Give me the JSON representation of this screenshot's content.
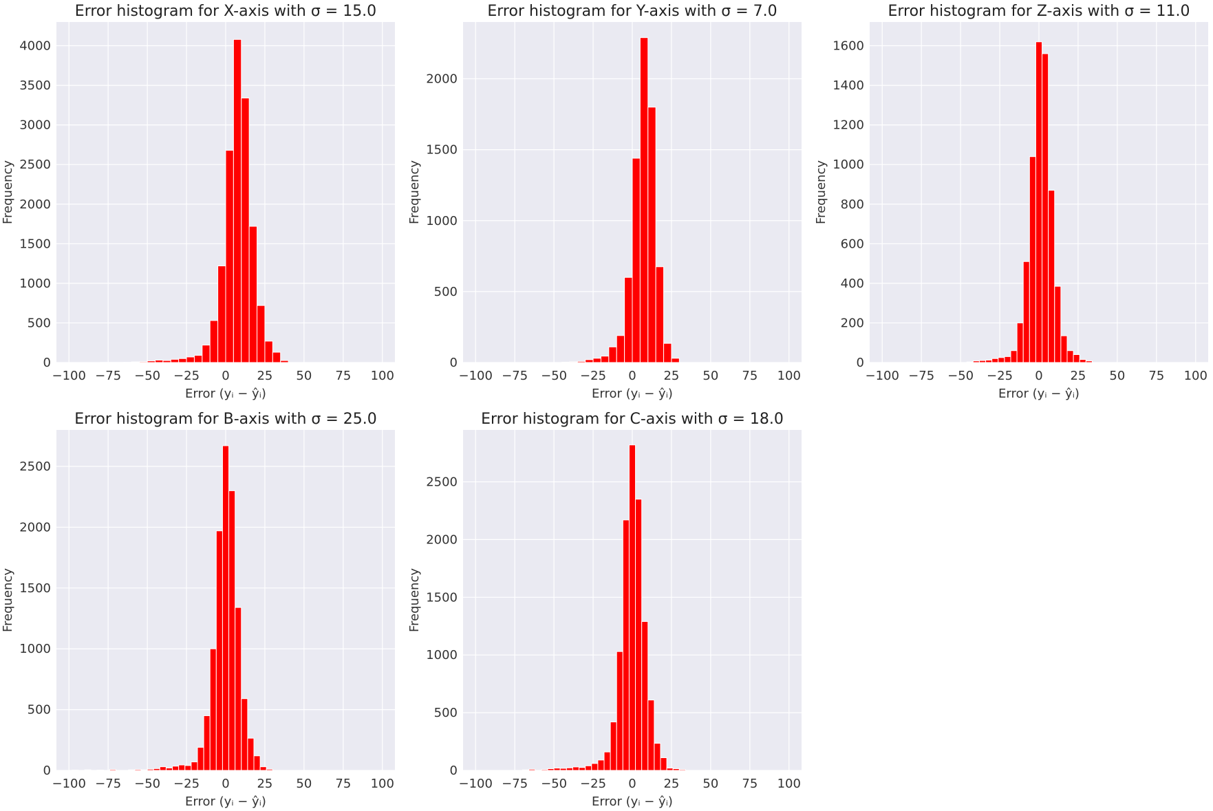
{
  "colors": {
    "bar": "#ff0000",
    "background": "#eaeaf2",
    "grid": "#ffffff"
  },
  "chart_data": [
    {
      "type": "bar",
      "title": "Error histogram for X-axis with σ = 15.0",
      "xlabel": "Error (yᵢ − ŷᵢ)",
      "ylabel": "Frequency",
      "xlim": [
        -108,
        108
      ],
      "ylim": [
        0,
        4300
      ],
      "xticks": [
        "−100",
        "−75",
        "−50",
        "−25",
        "0",
        "25",
        "50",
        "75",
        "100"
      ],
      "yticks": [
        "0",
        "500",
        "1000",
        "1500",
        "2000",
        "2500",
        "3000",
        "3500",
        "4000"
      ],
      "bin_width": 5,
      "x": [
        -80,
        -75,
        -70,
        -65,
        -60,
        -55,
        -50,
        -45,
        -40,
        -35,
        -30,
        -25,
        -20,
        -15,
        -10,
        -5,
        0,
        5,
        10,
        15,
        20,
        25,
        30,
        35
      ],
      "values": [
        2,
        2,
        2,
        3,
        8,
        10,
        20,
        30,
        25,
        40,
        50,
        70,
        90,
        220,
        530,
        1220,
        2680,
        4080,
        3340,
        1720,
        720,
        270,
        130,
        25
      ]
    },
    {
      "type": "bar",
      "title": "Error histogram for Y-axis with σ = 7.0",
      "xlabel": "Error (yᵢ − ŷᵢ)",
      "ylabel": "Frequency",
      "xlim": [
        -108,
        108
      ],
      "ylim": [
        0,
        2400
      ],
      "xticks": [
        "−100",
        "−75",
        "−50",
        "−25",
        "0",
        "25",
        "50",
        "75",
        "100"
      ],
      "yticks": [
        "0",
        "500",
        "1000",
        "1500",
        "2000"
      ],
      "bin_width": 5,
      "x": [
        -45,
        -40,
        -35,
        -30,
        -25,
        -20,
        -15,
        -10,
        -5,
        0,
        5,
        10
      ],
      "values": [
        2,
        5,
        8,
        20,
        30,
        45,
        110,
        190,
        600,
        1440,
        2290,
        1800
      ],
      "extra_x": [
        15,
        20,
        25
      ],
      "extra_values": [
        675,
        135,
        30
      ]
    },
    {
      "type": "bar",
      "title": "Error histogram for Z-axis with σ = 11.0",
      "xlabel": "Error (yᵢ − ŷᵢ)",
      "ylabel": "Frequency",
      "xlim": [
        -108,
        108
      ],
      "ylim": [
        0,
        1720
      ],
      "xticks": [
        "−100",
        "−75",
        "−50",
        "−25",
        "0",
        "25",
        "50",
        "75",
        "100"
      ],
      "yticks": [
        "0",
        "200",
        "400",
        "600",
        "800",
        "1000",
        "1200",
        "1400",
        "1600"
      ],
      "bin_width": 4,
      "x": [
        -46,
        -42,
        -38,
        -34,
        -30,
        -26,
        -22,
        -18,
        -14,
        -10,
        -6,
        -2,
        2,
        6,
        10,
        14,
        18,
        22,
        26,
        30
      ],
      "values": [
        3,
        8,
        10,
        12,
        20,
        25,
        30,
        60,
        200,
        510,
        1040,
        1620,
        1560,
        870,
        385,
        135,
        60,
        40,
        15,
        8
      ]
    },
    {
      "type": "bar",
      "title": "Error histogram for B-axis with σ = 25.0",
      "xlabel": "Error (yᵢ − ŷᵢ)",
      "ylabel": "Frequency",
      "xlim": [
        -108,
        108
      ],
      "ylim": [
        0,
        2800
      ],
      "xticks": [
        "−100",
        "−75",
        "−50",
        "−25",
        "0",
        "25",
        "50",
        "75",
        "100"
      ],
      "yticks": [
        "0",
        "500",
        "1000",
        "1500",
        "2000",
        "2500"
      ],
      "bin_width": 4,
      "x": [
        -98,
        -90,
        -82,
        -74,
        -62,
        -58,
        -54,
        -50,
        -46,
        -42,
        -38,
        -34,
        -30,
        -26,
        -22,
        -18,
        -14,
        -10,
        -6,
        -2,
        2,
        6,
        10,
        14,
        18,
        22,
        26
      ],
      "values": [
        3,
        5,
        3,
        8,
        5,
        8,
        5,
        10,
        15,
        30,
        20,
        35,
        45,
        40,
        70,
        190,
        450,
        1000,
        1970,
        2670,
        2300,
        1340,
        590,
        265,
        120,
        30,
        10
      ]
    },
    {
      "type": "bar",
      "title": "Error histogram for C-axis with σ = 18.0",
      "xlabel": "Error (yᵢ − ŷᵢ)",
      "ylabel": "Frequency",
      "xlim": [
        -108,
        108
      ],
      "ylim": [
        0,
        2950
      ],
      "xticks": [
        "−100",
        "−75",
        "−50",
        "−25",
        "0",
        "25",
        "50",
        "75",
        "100"
      ],
      "yticks": [
        "0",
        "500",
        "1000",
        "1500",
        "2000",
        "2500"
      ],
      "bin_width": 4,
      "x": [
        -70,
        -66,
        -58,
        -54,
        -50,
        -46,
        -42,
        -38,
        -34,
        -30,
        -26,
        -22,
        -18,
        -14,
        -10,
        -6,
        -2,
        2,
        6,
        10,
        14,
        18,
        22,
        26,
        30
      ],
      "values": [
        5,
        10,
        8,
        15,
        20,
        18,
        22,
        30,
        25,
        40,
        60,
        90,
        160,
        420,
        1030,
        2170,
        2820,
        2350,
        1290,
        610,
        235,
        110,
        20,
        15,
        8
      ]
    }
  ]
}
